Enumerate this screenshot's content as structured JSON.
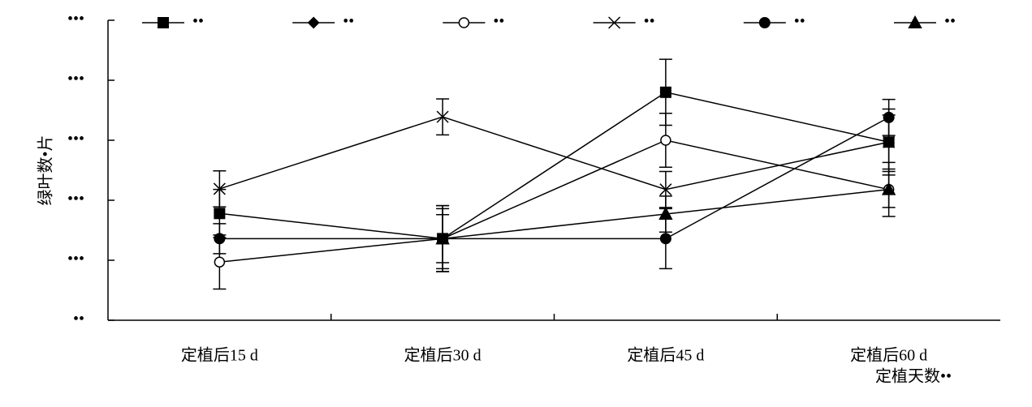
{
  "chart_data": {
    "type": "line",
    "y_label": "绿叶数•片",
    "x_label": "定植天数••",
    "categories": [
      "定植后15 d",
      "定植后30 d",
      "定植后45 d",
      "定植后60 d"
    ],
    "ylim": [
      0,
      5
    ],
    "yticks": [
      {
        "value": 0,
        "label": "••"
      },
      {
        "value": 1,
        "label": "•••"
      },
      {
        "value": 2,
        "label": "•••"
      },
      {
        "value": 3,
        "label": "•••"
      },
      {
        "value": 4,
        "label": "•••"
      },
      {
        "value": 5,
        "label": "•••"
      }
    ],
    "series": [
      {
        "name": "••",
        "marker": "square",
        "color": "#000000",
        "values": [
          1.78,
          1.36,
          3.8,
          2.97
        ],
        "errors": [
          0.4,
          0.55,
          0.55,
          0.45
        ]
      },
      {
        "name": "••",
        "marker": "diamond",
        "color": "#000000",
        "values": [
          null,
          null,
          null,
          null
        ],
        "errors": [
          null,
          null,
          null,
          null
        ]
      },
      {
        "name": "••",
        "marker": "open-circle",
        "color": "#000000",
        "values": [
          0.97,
          1.36,
          3.0,
          2.18
        ],
        "errors": [
          0.45,
          0.5,
          0.45,
          0.3
        ]
      },
      {
        "name": "••",
        "marker": "x",
        "color": "#000000",
        "values": [
          2.19,
          3.39,
          2.18,
          2.97
        ],
        "errors": [
          0.3,
          0.3,
          0.3,
          0.55
        ]
      },
      {
        "name": "••",
        "marker": "filled-circle",
        "color": "#000000",
        "values": [
          1.36,
          1.36,
          1.36,
          3.38
        ],
        "errors": [
          0.25,
          0.4,
          0.5,
          0.3
        ]
      },
      {
        "name": "••",
        "marker": "triangle",
        "color": "#000000",
        "values": [
          null,
          1.36,
          1.77,
          2.18
        ],
        "errors": [
          null,
          0.55,
          0.3,
          0.45
        ]
      }
    ]
  }
}
